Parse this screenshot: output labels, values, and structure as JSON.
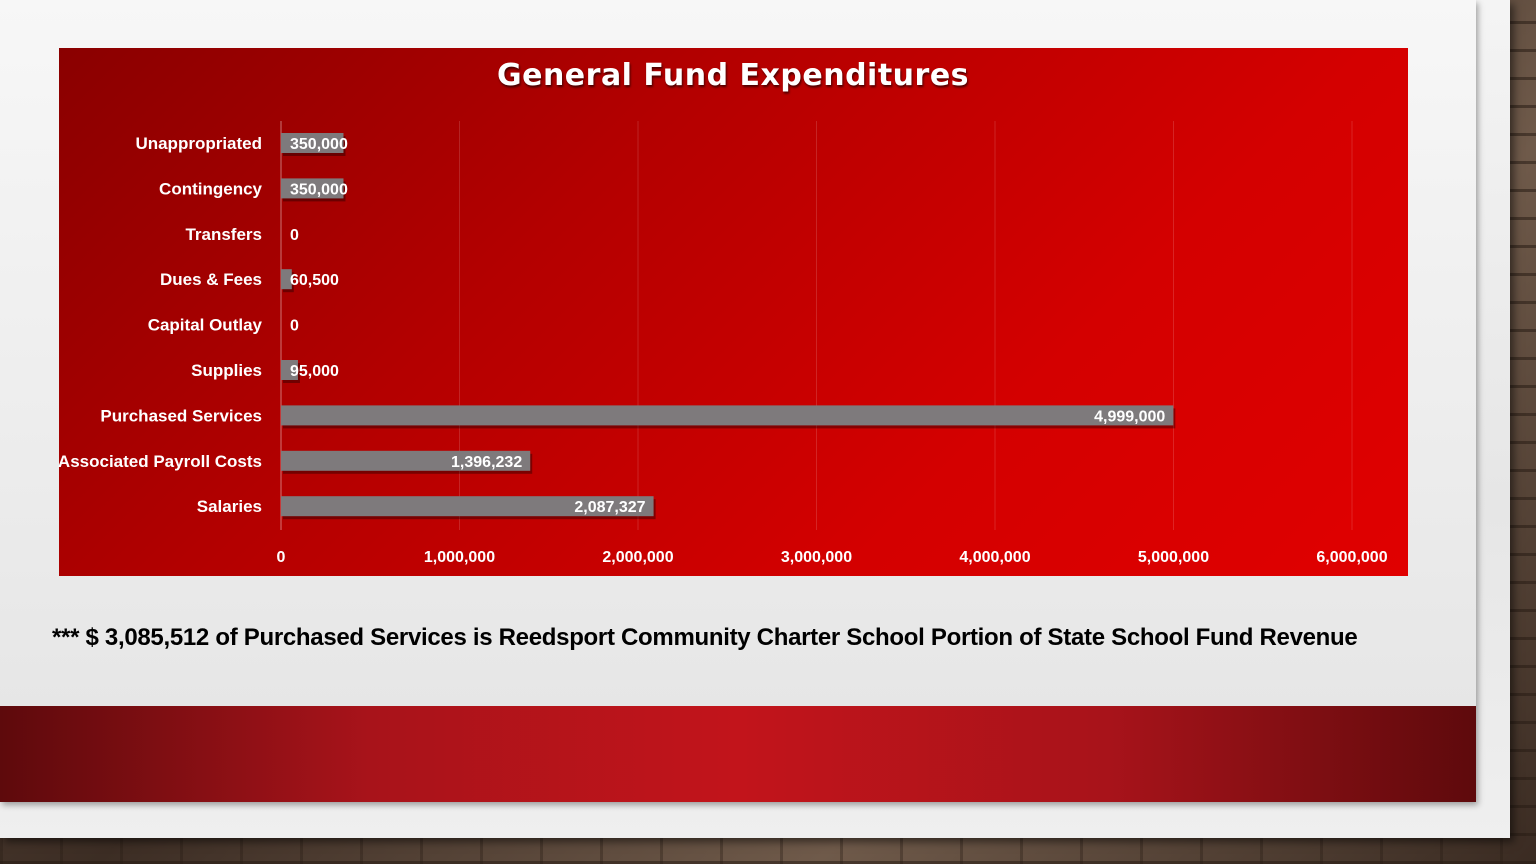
{
  "slide": {
    "footnote": "*** $ 3,085,512 of Purchased Services is Reedsport Community Charter School Portion of State School Fund Revenue"
  },
  "colors": {
    "panel_dark": "#8a0000",
    "panel_bright": "#e00000",
    "bar": "#7e7a7c",
    "text": "#ffffff",
    "band": "#c2141b"
  },
  "chart_data": {
    "type": "bar",
    "orientation": "horizontal",
    "title": "General Fund Expenditures",
    "categories": [
      "Unappropriated",
      "Contingency",
      "Transfers",
      "Dues & Fees",
      "Capital Outlay",
      "Supplies",
      "Purchased Services",
      "Associated Payroll Costs",
      "Salaries"
    ],
    "values": [
      350000,
      350000,
      0,
      60500,
      0,
      95000,
      4999000,
      1396232,
      2087327
    ],
    "value_labels": [
      "350,000",
      "350,000",
      "0",
      "60,500",
      "0",
      "95,000",
      "4,999,000",
      "1,396,232",
      "2,087,327"
    ],
    "xlim": [
      0,
      6000000
    ],
    "xticks": [
      0,
      1000000,
      2000000,
      3000000,
      4000000,
      5000000,
      6000000
    ],
    "xtick_labels": [
      "0",
      "1,000,000",
      "2,000,000",
      "3,000,000",
      "4,000,000",
      "5,000,000",
      "6,000,000"
    ],
    "grid": "vertical",
    "legend": "none"
  }
}
